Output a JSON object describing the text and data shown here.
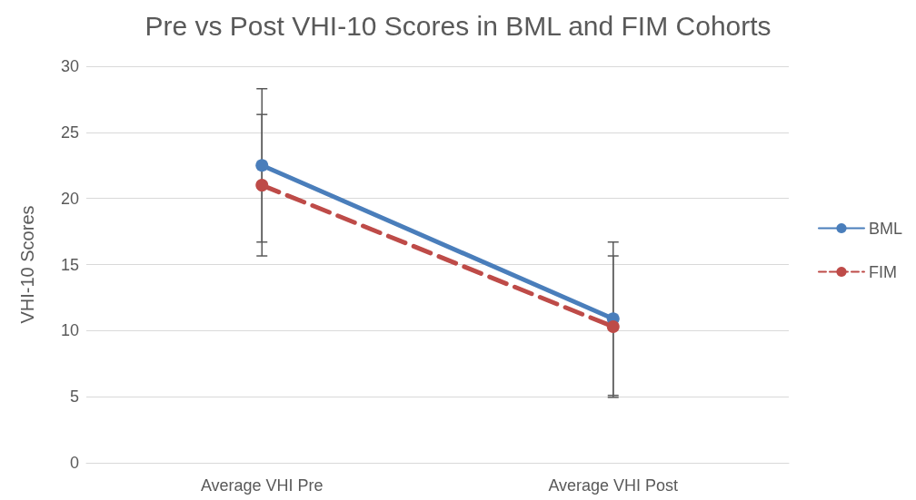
{
  "chart_data": {
    "type": "line",
    "title": "Pre vs Post VHI-10 Scores in BML and FIM Cohorts",
    "ylabel": "VHI-10 Scores",
    "categories": [
      "Average VHI Pre",
      "Average VHI Post"
    ],
    "series": [
      {
        "name": "BML",
        "color": "#4a7ebb",
        "values": [
          22.5,
          10.9
        ],
        "errors": [
          5.8,
          5.8
        ],
        "line_style": "solid"
      },
      {
        "name": "FIM",
        "color": "#be4b48",
        "values": [
          21.0,
          10.3
        ],
        "errors": [
          5.35,
          5.35
        ],
        "line_style": "dashed"
      }
    ],
    "ylim": [
      0,
      30
    ],
    "yticks": [
      0,
      5,
      10,
      15,
      20,
      25,
      30
    ],
    "grid": "y",
    "legend": "right",
    "marker": "circle"
  }
}
